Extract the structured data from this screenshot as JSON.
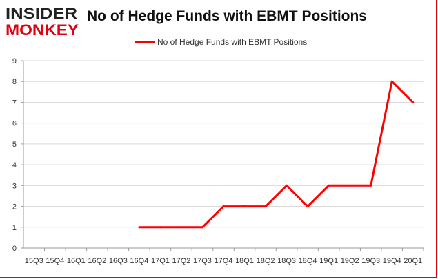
{
  "logo": {
    "line1": "INSIDER",
    "line2": "MONKEY"
  },
  "colors": {
    "brand_red": "#e0000f",
    "brand_dark": "#222222",
    "line": "#ff0000",
    "grid": "#d9d9d9"
  },
  "chart_data": {
    "type": "line",
    "title": "No of Hedge Funds with EBMT Positions",
    "xlabel": "",
    "ylabel": "",
    "ylim": [
      0,
      9
    ],
    "yticks": [
      0,
      1,
      2,
      3,
      4,
      5,
      6,
      7,
      8,
      9
    ],
    "grid": true,
    "legend": "top-center",
    "categories": [
      "15Q3",
      "15Q4",
      "16Q1",
      "16Q2",
      "16Q3",
      "16Q4",
      "17Q1",
      "17Q2",
      "17Q3",
      "17Q4",
      "18Q1",
      "18Q2",
      "18Q3",
      "18Q4",
      "19Q1",
      "19Q2",
      "19Q3",
      "19Q4",
      "20Q1"
    ],
    "series": [
      {
        "name": "No of Hedge Funds with EBMT Positions",
        "values": [
          null,
          null,
          null,
          null,
          null,
          1,
          1,
          1,
          1,
          2,
          2,
          2,
          3,
          2,
          3,
          3,
          3,
          8,
          7
        ]
      }
    ]
  }
}
